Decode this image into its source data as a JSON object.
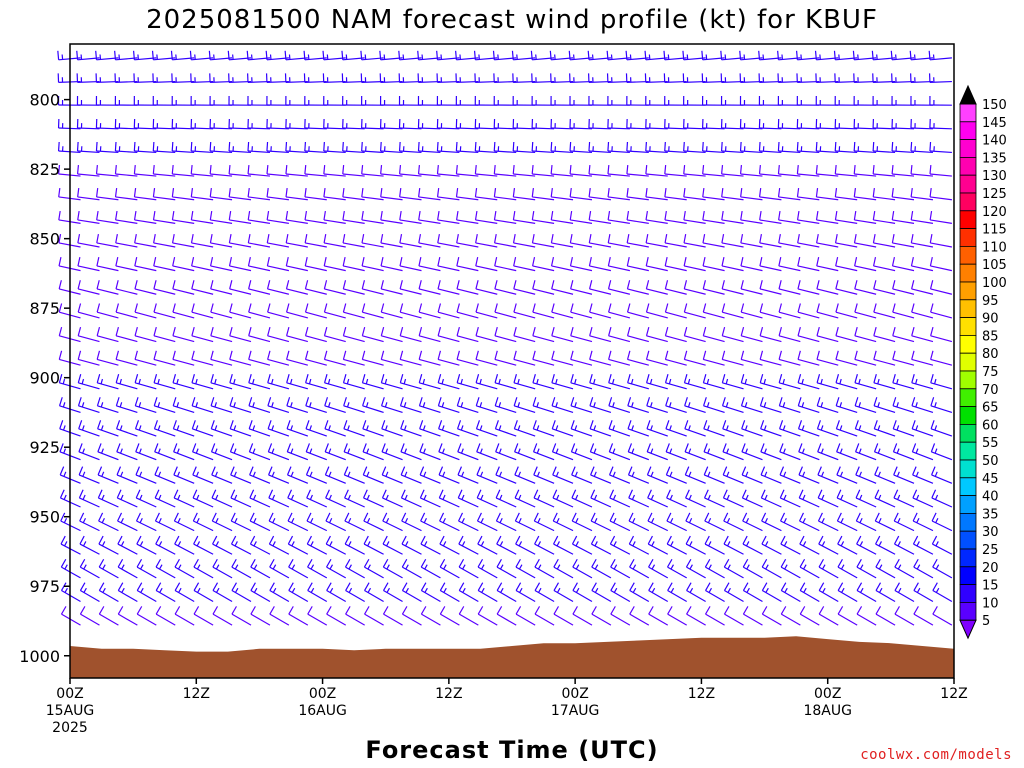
{
  "chart_data": {
    "type": "wind-barb-time-height",
    "title": "2025081500 NAM forecast wind profile (kt) for KBUF",
    "xlabel": "Forecast Time (UTC)",
    "credit": "coolwx.com/models",
    "y_axis": {
      "ylim": [
        1008,
        780
      ],
      "ticks": [
        "800",
        "825",
        "850",
        "875",
        "900",
        "925",
        "950",
        "975",
        "1000"
      ]
    },
    "x_axis": {
      "range_hours": [
        0,
        84
      ],
      "ticks": [
        {
          "hour": 0,
          "line1": "00Z",
          "line2": "15AUG",
          "line3": "2025"
        },
        {
          "hour": 12,
          "line1": "12Z",
          "line2": "",
          "line3": ""
        },
        {
          "hour": 24,
          "line1": "00Z",
          "line2": "16AUG",
          "line3": ""
        },
        {
          "hour": 36,
          "line1": "12Z",
          "line2": "",
          "line3": ""
        },
        {
          "hour": 48,
          "line1": "00Z",
          "line2": "17AUG",
          "line3": ""
        },
        {
          "hour": 60,
          "line1": "12Z",
          "line2": "",
          "line3": ""
        },
        {
          "hour": 72,
          "line1": "00Z",
          "line2": "18AUG",
          "line3": ""
        },
        {
          "hour": 84,
          "line1": "12Z",
          "line2": "",
          "line3": ""
        }
      ]
    },
    "colorbar": {
      "unit": "kt",
      "labels": [
        "5",
        "10",
        "15",
        "20",
        "25",
        "30",
        "35",
        "40",
        "45",
        "50",
        "55",
        "60",
        "65",
        "70",
        "75",
        "80",
        "85",
        "90",
        "95",
        "100",
        "105",
        "110",
        "115",
        "120",
        "125",
        "130",
        "135",
        "140",
        "145",
        "150"
      ],
      "colors": [
        "#8000ff",
        "#5a00ff",
        "#3000ff",
        "#0000ff",
        "#0028ff",
        "#0050ff",
        "#0078ff",
        "#00a0ff",
        "#00c8ff",
        "#00e0d0",
        "#00e8a0",
        "#00e060",
        "#00e000",
        "#40f000",
        "#a0ff00",
        "#e0ff00",
        "#ffff00",
        "#ffe000",
        "#ffc000",
        "#ffa000",
        "#ff8000",
        "#ff6000",
        "#ff3000",
        "#ff0000",
        "#ff0060",
        "#ff0090",
        "#ff00b0",
        "#ff00d0",
        "#ff00f0",
        "#ff40ff"
      ]
    },
    "terrain_color": "#a0522d",
    "surface_pressure_mb": [
      {
        "h": 0,
        "p": 996.5
      },
      {
        "h": 3,
        "p": 997.5
      },
      {
        "h": 6,
        "p": 997.5
      },
      {
        "h": 9,
        "p": 998
      },
      {
        "h": 12,
        "p": 998.5
      },
      {
        "h": 15,
        "p": 998.5
      },
      {
        "h": 18,
        "p": 997.5
      },
      {
        "h": 21,
        "p": 997.5
      },
      {
        "h": 24,
        "p": 997.5
      },
      {
        "h": 27,
        "p": 998
      },
      {
        "h": 30,
        "p": 997.5
      },
      {
        "h": 33,
        "p": 997.5
      },
      {
        "h": 36,
        "p": 997.5
      },
      {
        "h": 39,
        "p": 997.5
      },
      {
        "h": 42,
        "p": 996.5
      },
      {
        "h": 45,
        "p": 995.5
      },
      {
        "h": 48,
        "p": 995.5
      },
      {
        "h": 51,
        "p": 995
      },
      {
        "h": 54,
        "p": 994.5
      },
      {
        "h": 57,
        "p": 994
      },
      {
        "h": 60,
        "p": 993.5
      },
      {
        "h": 63,
        "p": 993.5
      },
      {
        "h": 66,
        "p": 993.5
      },
      {
        "h": 69,
        "p": 993
      },
      {
        "h": 72,
        "p": 994
      },
      {
        "h": 75,
        "p": 995
      },
      {
        "h": 78,
        "p": 995.5
      },
      {
        "h": 81,
        "p": 996.5
      },
      {
        "h": 84,
        "p": 997.5
      }
    ],
    "wind_rows": [
      {
        "p": 785,
        "spd": 18,
        "dir": 265
      },
      {
        "p": 800,
        "spd": 17,
        "dir": 270
      },
      {
        "p": 825,
        "spd": 15,
        "dir": 275
      },
      {
        "p": 850,
        "spd": 13,
        "dir": 280
      },
      {
        "p": 875,
        "spd": 14,
        "dir": 285
      },
      {
        "p": 900,
        "spd": 15,
        "dir": 285
      },
      {
        "p": 925,
        "spd": 17,
        "dir": 290
      },
      {
        "p": 950,
        "spd": 18,
        "dir": 295
      },
      {
        "p": 975,
        "spd": 17,
        "dir": 300
      },
      {
        "p": 1000,
        "spd": 8,
        "dir": 300
      }
    ]
  }
}
